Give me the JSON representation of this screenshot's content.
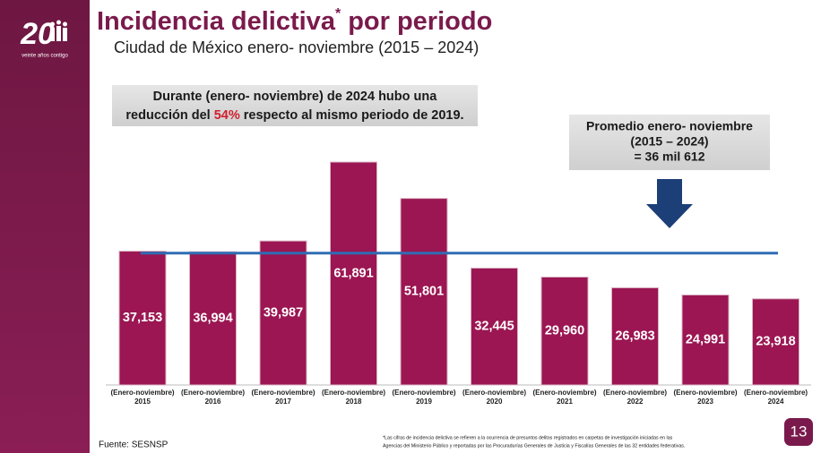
{
  "logo": {
    "number": "20",
    "tagline": "veinte años contigo"
  },
  "chart_data": {
    "type": "bar",
    "title": "Incidencia delictiva",
    "title_mark": "*",
    "title_rest": "por periodo",
    "subtitle": "Ciudad de México enero- noviembre (2015 – 2024)",
    "highlight": {
      "line1": "Durante (enero- noviembre) de 2024 hubo una",
      "before": "reducción del",
      "percent": "54%",
      "after": "respecto al mismo periodo de 2019."
    },
    "average_box": [
      "Promedio enero- noviembre",
      "(2015 – 2024)",
      "= 36 mil 612"
    ],
    "average": 36612,
    "average_color": "#2f6db3",
    "categories": [
      [
        "(Enero-noviembre)",
        "2015"
      ],
      [
        "(Enero-noviembre)",
        "2016"
      ],
      [
        "(Enero-noviembre)",
        "2017"
      ],
      [
        "(Enero-noviembre)",
        "2018"
      ],
      [
        "(Enero-noviembre)",
        "2019"
      ],
      [
        "(Enero-noviembre)",
        "2020"
      ],
      [
        "(Enero-noviembre)",
        "2021"
      ],
      [
        "(Enero-noviembre)",
        "2022"
      ],
      [
        "(Enero-noviembre)",
        "2023"
      ],
      [
        "(Enero-noviembre)",
        "2024"
      ]
    ],
    "values": [
      37153,
      36994,
      39987,
      61891,
      51801,
      32445,
      29960,
      26983,
      24991,
      23918
    ],
    "value_labels": [
      "37,153",
      "36,994",
      "39,987",
      "61,891",
      "51,801",
      "32,445",
      "29,960",
      "26,983",
      "24,991",
      "23,918"
    ],
    "color": "#9b1652",
    "ylim": [
      0,
      62000
    ],
    "source": "Fuente: SESNSP",
    "footnote": [
      "*Las cifras de incidencia delictiva se refieren a la ocurrencia de presuntos delitos registrados en carpetas de investigación iniciadas en las",
      "Agencias del Ministerio Público y reportadas por las Procuradurías Generales de Justicia y Fiscalías Generales de las 32 entidades federativas."
    ],
    "page_number": "13"
  }
}
